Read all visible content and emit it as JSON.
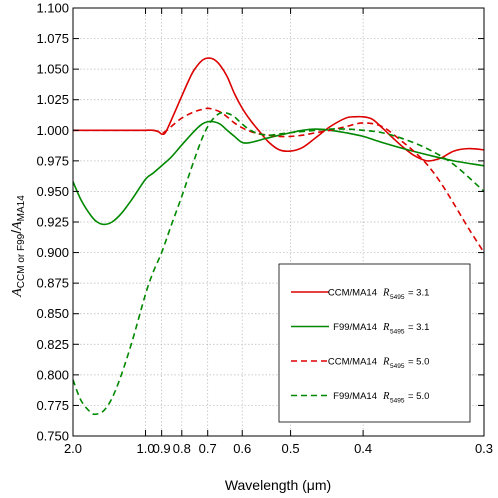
{
  "chart_data": {
    "type": "line",
    "xlabel": "Wavelength (μm)",
    "ylabel": {
      "a": "A",
      "num_sub": "CCM or F99",
      "slash": "/",
      "b": "A",
      "den_sub": "MA14"
    },
    "xscale": "reciprocal",
    "xlim": [
      2.0,
      0.3
    ],
    "ylim": [
      0.75,
      1.1
    ],
    "x_ticks": [
      {
        "value": 2.0,
        "label": "2.0"
      },
      {
        "value": 1.0,
        "label": "1.0"
      },
      {
        "value": 0.9,
        "label": "0.9"
      },
      {
        "value": 0.8,
        "label": "0.8"
      },
      {
        "value": 0.7,
        "label": "0.7"
      },
      {
        "value": 0.6,
        "label": "0.6"
      },
      {
        "value": 0.5,
        "label": "0.5"
      },
      {
        "value": 0.4,
        "label": "0.4"
      },
      {
        "value": 0.3,
        "label": "0.3"
      }
    ],
    "y_ticks": [
      {
        "value": 0.75,
        "label": "0.750"
      },
      {
        "value": 0.775,
        "label": "0.775"
      },
      {
        "value": 0.8,
        "label": "0.800"
      },
      {
        "value": 0.825,
        "label": "0.825"
      },
      {
        "value": 0.85,
        "label": "0.850"
      },
      {
        "value": 0.875,
        "label": "0.875"
      },
      {
        "value": 0.9,
        "label": "0.900"
      },
      {
        "value": 0.925,
        "label": "0.925"
      },
      {
        "value": 0.95,
        "label": "0.950"
      },
      {
        "value": 0.975,
        "label": "0.975"
      },
      {
        "value": 1.0,
        "label": "1.000"
      },
      {
        "value": 1.025,
        "label": "1.025"
      },
      {
        "value": 1.05,
        "label": "1.050"
      },
      {
        "value": 1.075,
        "label": "1.075"
      },
      {
        "value": 1.1,
        "label": "1.100"
      }
    ],
    "grid": true,
    "legend_position": "bottom-right",
    "series": [
      {
        "name": "CCM/MA14",
        "r_label": "R",
        "r_sub": "5495",
        "r_value": "= 3.1",
        "color": "#dd0000",
        "dash": "solid",
        "x": [
          2.0,
          1.5,
          1.2,
          1.1,
          1.0,
          0.95,
          0.92,
          0.9,
          0.88,
          0.85,
          0.8,
          0.77,
          0.75,
          0.72,
          0.7,
          0.68,
          0.66,
          0.64,
          0.62,
          0.6,
          0.58,
          0.56,
          0.54,
          0.52,
          0.5,
          0.48,
          0.46,
          0.44,
          0.42,
          0.41,
          0.4,
          0.39,
          0.38,
          0.37,
          0.36,
          0.35,
          0.34,
          0.33,
          0.32,
          0.31,
          0.3
        ],
        "y": [
          1.0,
          1.0,
          1.0,
          1.0,
          1.0,
          1.0,
          0.999,
          0.997,
          0.998,
          1.008,
          1.028,
          1.041,
          1.049,
          1.057,
          1.059,
          1.058,
          1.053,
          1.044,
          1.03,
          1.018,
          1.008,
          0.999,
          0.99,
          0.984,
          0.983,
          0.986,
          0.994,
          1.003,
          1.01,
          1.011,
          1.011,
          1.009,
          1.002,
          0.994,
          0.986,
          0.979,
          0.975,
          0.977,
          0.983,
          0.985,
          0.984
        ]
      },
      {
        "name": "F99/MA14",
        "r_label": "R",
        "r_sub": "5495",
        "r_value": "= 3.1",
        "color": "#008800",
        "dash": "solid",
        "x": [
          2.0,
          1.8,
          1.6,
          1.5,
          1.4,
          1.3,
          1.2,
          1.1,
          1.0,
          0.95,
          0.9,
          0.85,
          0.8,
          0.75,
          0.72,
          0.7,
          0.68,
          0.66,
          0.64,
          0.62,
          0.6,
          0.58,
          0.55,
          0.52,
          0.5,
          0.48,
          0.46,
          0.44,
          0.42,
          0.4,
          0.38,
          0.36,
          0.34,
          0.32,
          0.3
        ],
        "y": [
          0.958,
          0.943,
          0.93,
          0.925,
          0.923,
          0.925,
          0.932,
          0.944,
          0.96,
          0.965,
          0.971,
          0.978,
          0.988,
          0.999,
          1.005,
          1.007,
          1.007,
          1.005,
          1.0,
          0.995,
          0.99,
          0.99,
          0.993,
          0.996,
          0.998,
          1.0,
          1.001,
          1.0,
          0.998,
          0.995,
          0.99,
          0.985,
          0.98,
          0.975,
          0.971
        ]
      },
      {
        "name": "CCM/MA14",
        "r_label": "R",
        "r_sub": "5495",
        "r_value": "= 5.0",
        "color": "#dd0000",
        "dash": "dashed",
        "x": [
          2.0,
          1.5,
          1.2,
          1.1,
          1.0,
          0.95,
          0.92,
          0.9,
          0.88,
          0.85,
          0.8,
          0.75,
          0.72,
          0.7,
          0.68,
          0.66,
          0.64,
          0.62,
          0.6,
          0.58,
          0.56,
          0.54,
          0.52,
          0.5,
          0.48,
          0.46,
          0.44,
          0.42,
          0.4,
          0.38,
          0.36,
          0.35,
          0.34,
          0.33,
          0.32,
          0.31,
          0.3
        ],
        "y": [
          1.0,
          1.0,
          1.0,
          1.0,
          1.0,
          1.0,
          0.999,
          0.998,
          0.999,
          1.003,
          1.01,
          1.015,
          1.017,
          1.018,
          1.017,
          1.015,
          1.011,
          1.006,
          1.002,
          0.999,
          0.997,
          0.996,
          0.995,
          0.995,
          0.996,
          0.998,
          1.0,
          1.003,
          1.006,
          1.003,
          0.99,
          0.982,
          0.972,
          0.958,
          0.94,
          0.92,
          0.9
        ]
      },
      {
        "name": "F99/MA14",
        "r_label": "R",
        "r_sub": "5495",
        "r_value": "= 5.0",
        "color": "#008800",
        "dash": "dashed",
        "x": [
          2.0,
          1.8,
          1.6,
          1.5,
          1.4,
          1.3,
          1.2,
          1.1,
          1.0,
          0.95,
          0.9,
          0.85,
          0.8,
          0.75,
          0.72,
          0.7,
          0.68,
          0.66,
          0.64,
          0.62,
          0.6,
          0.58,
          0.56,
          0.54,
          0.52,
          0.5,
          0.48,
          0.46,
          0.44,
          0.42,
          0.4,
          0.38,
          0.36,
          0.34,
          0.32,
          0.3
        ],
        "y": [
          0.796,
          0.779,
          0.769,
          0.768,
          0.771,
          0.781,
          0.8,
          0.828,
          0.866,
          0.884,
          0.9,
          0.922,
          0.946,
          0.975,
          0.993,
          1.003,
          1.01,
          1.014,
          1.014,
          1.011,
          1.005,
          1.0,
          0.997,
          0.996,
          0.997,
          0.998,
          0.999,
          1.0,
          1.001,
          1.001,
          1.0,
          0.998,
          0.993,
          0.985,
          0.972,
          0.95
        ]
      }
    ]
  }
}
